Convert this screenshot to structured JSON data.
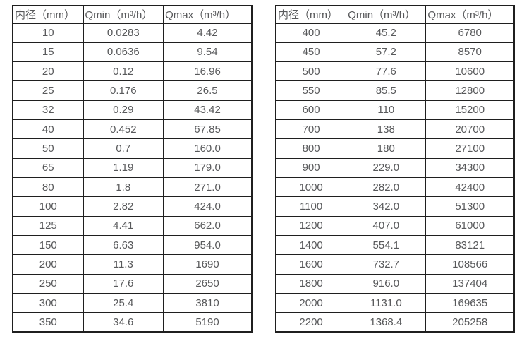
{
  "colors": {
    "text": "#58595b",
    "border": "#1f1f1f",
    "background": "#ffffff"
  },
  "chart_data": [
    {
      "type": "table",
      "headers": [
        "内径（mm）",
        "Qmin（m³/h）",
        "Qmax（m³/h）"
      ],
      "rows": [
        [
          "10",
          "0.0283",
          "4.42"
        ],
        [
          "15",
          "0.0636",
          "9.54"
        ],
        [
          "20",
          "0.12",
          "16.96"
        ],
        [
          "25",
          "0.176",
          "26.5"
        ],
        [
          "32",
          "0.29",
          "43.42"
        ],
        [
          "40",
          "0.452",
          "67.85"
        ],
        [
          "50",
          "0.7",
          "160.0"
        ],
        [
          "65",
          "1.19",
          "179.0"
        ],
        [
          "80",
          "1.8",
          "271.0"
        ],
        [
          "100",
          "2.82",
          "424.0"
        ],
        [
          "125",
          "4.41",
          "662.0"
        ],
        [
          "150",
          "6.63",
          "954.0"
        ],
        [
          "200",
          "11.3",
          "1690"
        ],
        [
          "250",
          "17.6",
          "2650"
        ],
        [
          "300",
          "25.4",
          "3810"
        ],
        [
          "350",
          "34.6",
          "5190"
        ]
      ]
    },
    {
      "type": "table",
      "headers": [
        "内径（mm）",
        "Qmin（m³/h）",
        "Qmax（m³/h）"
      ],
      "rows": [
        [
          "400",
          "45.2",
          "6780"
        ],
        [
          "450",
          "57.2",
          "8570"
        ],
        [
          "500",
          "77.6",
          "10600"
        ],
        [
          "550",
          "85.5",
          "12800"
        ],
        [
          "600",
          "110",
          "15200"
        ],
        [
          "700",
          "138",
          "20700"
        ],
        [
          "800",
          "180",
          "27100"
        ],
        [
          "900",
          "229.0",
          "34300"
        ],
        [
          "1000",
          "282.0",
          "42400"
        ],
        [
          "1100",
          "342.0",
          "51300"
        ],
        [
          "1200",
          "407.0",
          "61000"
        ],
        [
          "1400",
          "554.1",
          "83121"
        ],
        [
          "1600",
          "732.7",
          "108566"
        ],
        [
          "1800",
          "916.0",
          "137404"
        ],
        [
          "2000",
          "1131.0",
          "169635"
        ],
        [
          "2200",
          "1368.4",
          "205258"
        ]
      ]
    }
  ]
}
